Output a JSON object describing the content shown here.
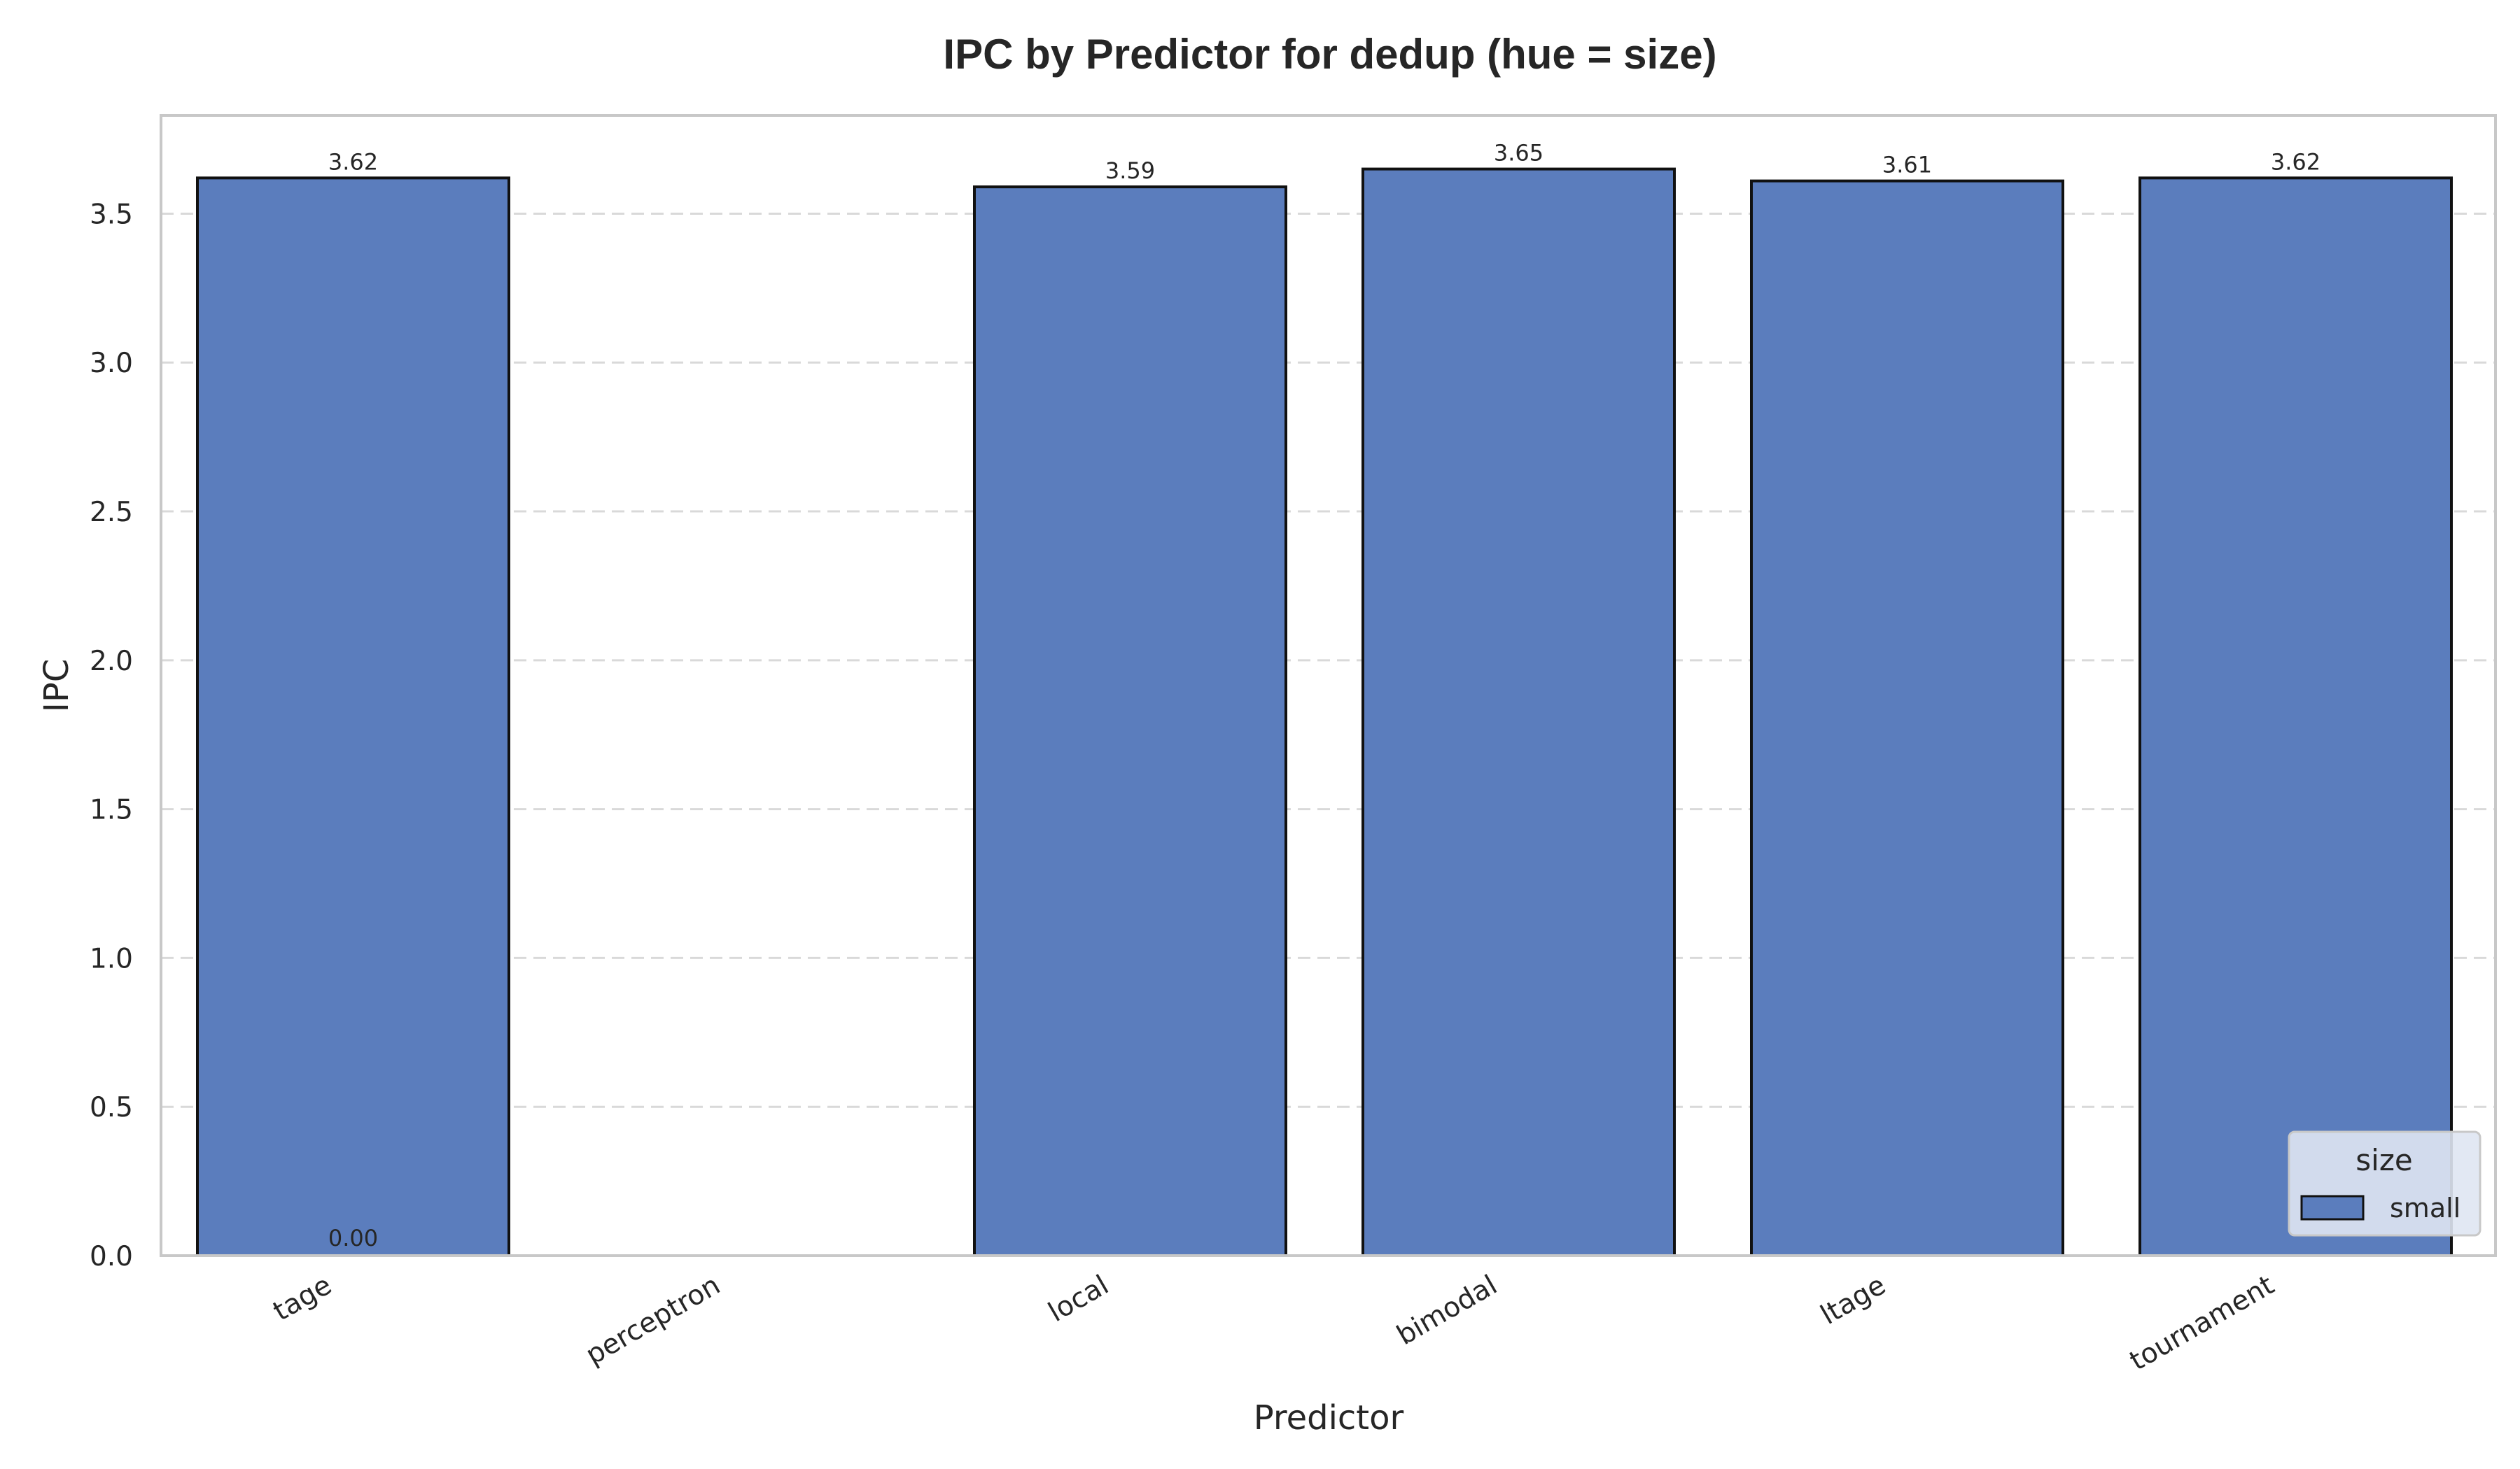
{
  "chart_data": {
    "type": "bar",
    "title": "IPC by Predictor for dedup (hue = size)",
    "xlabel": "Predictor",
    "ylabel": "IPC",
    "categories": [
      "tage",
      "perceptron",
      "local",
      "bimodal",
      "ltage",
      "tournament"
    ],
    "series": [
      {
        "name": "small",
        "values": [
          3.62,
          null,
          3.59,
          3.65,
          3.61,
          3.62
        ],
        "labels": [
          "3.62",
          null,
          "3.59",
          "3.65",
          "3.61",
          "3.62"
        ]
      }
    ],
    "extra_labels": [
      {
        "category": "tage",
        "value": 0,
        "text": "0.00"
      }
    ],
    "ylim": [
      0,
      3.83
    ],
    "yticks": [
      0.0,
      0.5,
      1.0,
      1.5,
      2.0,
      2.5,
      3.0,
      3.5
    ],
    "ytick_labels": [
      "0.0",
      "0.5",
      "1.0",
      "1.5",
      "2.0",
      "2.5",
      "3.0",
      "3.5"
    ],
    "grid": "y-dashed",
    "legend": {
      "title": "size",
      "position": "bottom-right",
      "entries": [
        "small"
      ]
    },
    "colors": {
      "bar": "#5b7dbd",
      "edge": "#111111",
      "grid": "#d9d9d9",
      "frame": "#c8c8c8"
    }
  }
}
